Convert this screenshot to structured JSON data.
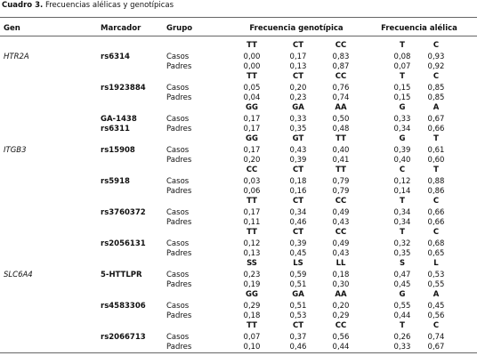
{
  "caption": {
    "label": "Cuadro 3.",
    "text": "Frecuencias alélicas y genotípicas"
  },
  "header": {
    "gene": "Gen",
    "marker": "Marcador",
    "group": "Grupo",
    "genotype": "Frecuencia genotípica",
    "allele": "Frecuencia alélica"
  },
  "genes": [
    {
      "name": "HTR2A",
      "markers": [
        {
          "names": [
            "rs6314"
          ],
          "genotypes": [
            "TT",
            "CT",
            "CC"
          ],
          "alleles": [
            "T",
            "C"
          ],
          "rows": [
            {
              "group": "Casos",
              "genotype": [
                "0,00",
                "0,17",
                "0,83"
              ],
              "allele": [
                "0,08",
                "0,93"
              ]
            },
            {
              "group": "Padres",
              "genotype": [
                "0,00",
                "0,13",
                "0,87"
              ],
              "allele": [
                "0,07",
                "0,92"
              ]
            }
          ]
        },
        {
          "names": [
            "rs1923884"
          ],
          "genotypes": [
            "TT",
            "CT",
            "CC"
          ],
          "alleles": [
            "T",
            "C"
          ],
          "rows": [
            {
              "group": "Casos",
              "genotype": [
                "0,05",
                "0,20",
                "0,76"
              ],
              "allele": [
                "0,15",
                "0,85"
              ]
            },
            {
              "group": "Padres",
              "genotype": [
                "0,04",
                "0,23",
                "0,74"
              ],
              "allele": [
                "0,15",
                "0,85"
              ]
            }
          ]
        },
        {
          "names": [
            "GA-1438",
            "rs6311"
          ],
          "genotypes": [
            "GG",
            "GA",
            "AA"
          ],
          "alleles": [
            "G",
            "A"
          ],
          "rows": [
            {
              "group": "Casos",
              "genotype": [
                "0,17",
                "0,33",
                "0,50"
              ],
              "allele": [
                "0,33",
                "0,67"
              ]
            },
            {
              "group": "Padres",
              "genotype": [
                "0,17",
                "0,35",
                "0,48"
              ],
              "allele": [
                "0,34",
                "0,66"
              ]
            }
          ]
        }
      ]
    },
    {
      "name": "ITGB3",
      "markers": [
        {
          "names": [
            "rs15908"
          ],
          "genotypes": [
            "GG",
            "GT",
            "TT"
          ],
          "alleles": [
            "G",
            "T"
          ],
          "rows": [
            {
              "group": "Casos",
              "genotype": [
                "0,17",
                "0,43",
                "0,40"
              ],
              "allele": [
                "0,39",
                "0,61"
              ]
            },
            {
              "group": "Padres",
              "genotype": [
                "0,20",
                "0,39",
                "0,41"
              ],
              "allele": [
                "0,40",
                "0,60"
              ]
            }
          ]
        },
        {
          "names": [
            "rs5918"
          ],
          "genotypes": [
            "CC",
            "CT",
            "TT"
          ],
          "alleles": [
            "C",
            "T"
          ],
          "rows": [
            {
              "group": "Casos",
              "genotype": [
                "0,03",
                "0,18",
                "0,79"
              ],
              "allele": [
                "0,12",
                "0,88"
              ]
            },
            {
              "group": "Padres",
              "genotype": [
                "0,06",
                "0,16",
                "0,79"
              ],
              "allele": [
                "0,14",
                "0,86"
              ]
            }
          ]
        },
        {
          "names": [
            "rs3760372"
          ],
          "genotypes": [
            "TT",
            "CT",
            "CC"
          ],
          "alleles": [
            "T",
            "C"
          ],
          "rows": [
            {
              "group": "Casos",
              "genotype": [
                "0,17",
                "0,34",
                "0,49"
              ],
              "allele": [
                "0,34",
                "0,66"
              ]
            },
            {
              "group": "Padres",
              "genotype": [
                "0,11",
                "0,46",
                "0,43"
              ],
              "allele": [
                "0,34",
                "0,66"
              ]
            }
          ]
        },
        {
          "names": [
            "rs2056131"
          ],
          "genotypes": [
            "TT",
            "CT",
            "CC"
          ],
          "alleles": [
            "T",
            "C"
          ],
          "rows": [
            {
              "group": "Casos",
              "genotype": [
                "0,12",
                "0,39",
                "0,49"
              ],
              "allele": [
                "0,32",
                "0,68"
              ]
            },
            {
              "group": "Padres",
              "genotype": [
                "0,13",
                "0,45",
                "0,43"
              ],
              "allele": [
                "0,35",
                "0,65"
              ]
            }
          ]
        }
      ]
    },
    {
      "name": "SLC6A4",
      "markers": [
        {
          "names": [
            "5-HTTLPR"
          ],
          "genotypes": [
            "SS",
            "LS",
            "LL"
          ],
          "alleles": [
            "S",
            "L"
          ],
          "rows": [
            {
              "group": "Casos",
              "genotype": [
                "0,23",
                "0,59",
                "0,18"
              ],
              "allele": [
                "0,47",
                "0,53"
              ]
            },
            {
              "group": "Padres",
              "genotype": [
                "0,19",
                "0,51",
                "0,30"
              ],
              "allele": [
                "0,45",
                "0,55"
              ]
            }
          ]
        },
        {
          "names": [
            "rs4583306"
          ],
          "genotypes": [
            "GG",
            "GA",
            "AA"
          ],
          "alleles": [
            "G",
            "A"
          ],
          "rows": [
            {
              "group": "Casos",
              "genotype": [
                "0,29",
                "0,51",
                "0,20"
              ],
              "allele": [
                "0,55",
                "0,45"
              ]
            },
            {
              "group": "Padres",
              "genotype": [
                "0,18",
                "0,53",
                "0,29"
              ],
              "allele": [
                "0,44",
                "0,56"
              ]
            }
          ]
        },
        {
          "names": [
            "rs2066713"
          ],
          "genotypes": [
            "TT",
            "CT",
            "CC"
          ],
          "alleles": [
            "T",
            "C"
          ],
          "rows": [
            {
              "group": "Casos",
              "genotype": [
                "0,07",
                "0,37",
                "0,56"
              ],
              "allele": [
                "0,26",
                "0,74"
              ]
            },
            {
              "group": "Padres",
              "genotype": [
                "0,10",
                "0,46",
                "0,44"
              ],
              "allele": [
                "0,33",
                "0,67"
              ]
            }
          ]
        }
      ]
    }
  ]
}
